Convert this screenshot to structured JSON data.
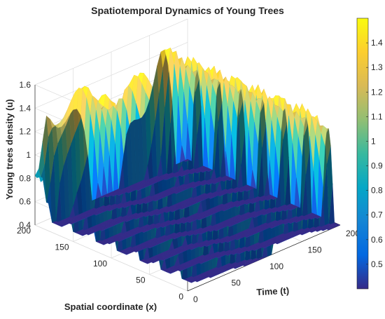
{
  "chart_data": {
    "type": "surface3d",
    "title": "Spatiotemporal Dynamics of Young Trees",
    "xlabel": "Time (t)",
    "ylabel": "Spatial coordinate (x)",
    "zlabel": "Young trees density (u)",
    "t_range": [
      0,
      200
    ],
    "x_range": [
      0,
      200
    ],
    "zlim": [
      0.4,
      1.6
    ],
    "t_ticks": [
      "0",
      "50",
      "100",
      "150",
      "200"
    ],
    "x_ticks": [
      "0",
      "50",
      "100",
      "150",
      "200"
    ],
    "z_ticks": [
      "0.4",
      "0.6",
      "0.8",
      "1",
      "1.2",
      "1.4",
      "1.6"
    ],
    "initial_value": 0.85,
    "oscillation_min": 0.4,
    "oscillation_max": 1.45,
    "colormap": "parula",
    "colorbar": {
      "range": [
        0.4,
        1.5
      ],
      "ticks": [
        "0.5",
        "0.6",
        "0.7",
        "0.8",
        "0.9",
        "1",
        "1.1",
        "1.2",
        "1.3",
        "1.4"
      ],
      "stops": [
        "#352a87",
        "#0268e1",
        "#1485d4",
        "#06a7c6",
        "#38b99e",
        "#92bf73",
        "#d9ba56",
        "#fcce2e",
        "#f9fb0e"
      ]
    },
    "grid": true,
    "colorbar_placement": "right"
  }
}
